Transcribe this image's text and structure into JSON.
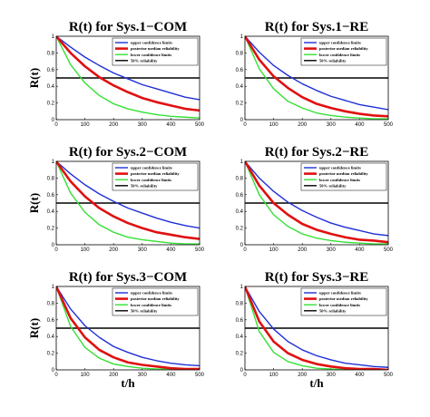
{
  "chart_data": [
    {
      "type": "line",
      "title": "R(t) for Sys.1−COM",
      "xlabel": "",
      "ylabel": "R(t)",
      "xlim": [
        0,
        500
      ],
      "ylim": [
        0,
        1
      ],
      "xticks": [
        "0",
        "100",
        "200",
        "300",
        "400",
        "500"
      ],
      "yticks": [
        "0",
        "0.2",
        "0.4",
        "0.6",
        "0.8",
        "1"
      ],
      "legend_position": "top-right",
      "x": [
        0,
        50,
        100,
        150,
        200,
        250,
        300,
        350,
        400,
        450,
        500
      ],
      "series": [
        {
          "name": "upper confidence limits",
          "color": "#1f2fd6",
          "values": [
            1.0,
            0.87,
            0.75,
            0.65,
            0.56,
            0.49,
            0.42,
            0.37,
            0.32,
            0.27,
            0.24
          ]
        },
        {
          "name": "posterior median reliability",
          "color": "#e01010",
          "values": [
            1.0,
            0.8,
            0.64,
            0.51,
            0.41,
            0.33,
            0.26,
            0.21,
            0.17,
            0.13,
            0.11
          ]
        },
        {
          "name": "lower confidence limits",
          "color": "#34e034",
          "values": [
            1.0,
            0.66,
            0.44,
            0.29,
            0.19,
            0.13,
            0.09,
            0.06,
            0.04,
            0.03,
            0.02
          ]
        },
        {
          "name": "50% reliability",
          "color": "#000000",
          "values": [
            0.5,
            0.5,
            0.5,
            0.5,
            0.5,
            0.5,
            0.5,
            0.5,
            0.5,
            0.5,
            0.5
          ]
        }
      ]
    },
    {
      "type": "line",
      "title": "R(t) for Sys.1−RE",
      "xlabel": "",
      "ylabel": "",
      "xlim": [
        0,
        500
      ],
      "ylim": [
        0,
        1
      ],
      "xticks": [
        "0",
        "100",
        "200",
        "300",
        "400",
        "500"
      ],
      "yticks": [
        "0",
        "0.2",
        "0.4",
        "0.6",
        "0.8",
        "1"
      ],
      "legend_position": "top-right",
      "x": [
        0,
        50,
        100,
        150,
        200,
        250,
        300,
        350,
        400,
        450,
        500
      ],
      "series": [
        {
          "name": "upper confidence limits",
          "color": "#1f2fd6",
          "values": [
            1.0,
            0.81,
            0.65,
            0.53,
            0.43,
            0.35,
            0.28,
            0.23,
            0.18,
            0.15,
            0.12
          ]
        },
        {
          "name": "posterior median reliability",
          "color": "#e01010",
          "values": [
            1.0,
            0.72,
            0.52,
            0.38,
            0.27,
            0.19,
            0.14,
            0.1,
            0.07,
            0.05,
            0.04
          ]
        },
        {
          "name": "lower confidence limits",
          "color": "#34e034",
          "values": [
            1.0,
            0.61,
            0.37,
            0.22,
            0.14,
            0.08,
            0.05,
            0.03,
            0.02,
            0.01,
            0.01
          ]
        },
        {
          "name": "50% reliability",
          "color": "#000000",
          "values": [
            0.5,
            0.5,
            0.5,
            0.5,
            0.5,
            0.5,
            0.5,
            0.5,
            0.5,
            0.5,
            0.5
          ]
        }
      ]
    },
    {
      "type": "line",
      "title": "R(t) for Sys.2−COM",
      "xlabel": "",
      "ylabel": "R(t)",
      "xlim": [
        0,
        500
      ],
      "ylim": [
        0,
        1
      ],
      "xticks": [
        "0",
        "100",
        "200",
        "300",
        "400",
        "500"
      ],
      "yticks": [
        "0",
        "0.2",
        "0.4",
        "0.6",
        "0.8",
        "1"
      ],
      "legend_position": "top-right",
      "x": [
        0,
        50,
        100,
        150,
        200,
        250,
        300,
        350,
        400,
        450,
        500
      ],
      "series": [
        {
          "name": "upper confidence limits",
          "color": "#1f2fd6",
          "values": [
            1.0,
            0.85,
            0.72,
            0.61,
            0.52,
            0.44,
            0.38,
            0.32,
            0.27,
            0.23,
            0.2
          ]
        },
        {
          "name": "posterior median reliability",
          "color": "#e01010",
          "values": [
            1.0,
            0.76,
            0.58,
            0.44,
            0.34,
            0.26,
            0.2,
            0.15,
            0.12,
            0.09,
            0.07
          ]
        },
        {
          "name": "lower confidence limits",
          "color": "#34e034",
          "values": [
            1.0,
            0.62,
            0.39,
            0.24,
            0.15,
            0.09,
            0.06,
            0.04,
            0.02,
            0.01,
            0.01
          ]
        },
        {
          "name": "50% reliability",
          "color": "#000000",
          "values": [
            0.5,
            0.5,
            0.5,
            0.5,
            0.5,
            0.5,
            0.5,
            0.5,
            0.5,
            0.5,
            0.5
          ]
        }
      ]
    },
    {
      "type": "line",
      "title": "R(t) for Sys.2−RE",
      "xlabel": "",
      "ylabel": "",
      "xlim": [
        0,
        500
      ],
      "ylim": [
        0,
        1
      ],
      "xticks": [
        "0",
        "100",
        "200",
        "300",
        "400",
        "500"
      ],
      "yticks": [
        "0",
        "0.2",
        "0.4",
        "0.6",
        "0.8",
        "1"
      ],
      "legend_position": "top-right",
      "x": [
        0,
        50,
        100,
        150,
        200,
        250,
        300,
        350,
        400,
        450,
        500
      ],
      "series": [
        {
          "name": "upper confidence limits",
          "color": "#1f2fd6",
          "values": [
            1.0,
            0.8,
            0.64,
            0.51,
            0.41,
            0.33,
            0.26,
            0.21,
            0.17,
            0.13,
            0.11
          ]
        },
        {
          "name": "posterior median reliability",
          "color": "#e01010",
          "values": [
            1.0,
            0.71,
            0.5,
            0.36,
            0.25,
            0.18,
            0.13,
            0.09,
            0.06,
            0.05,
            0.03
          ]
        },
        {
          "name": "lower confidence limits",
          "color": "#34e034",
          "values": [
            1.0,
            0.6,
            0.36,
            0.22,
            0.13,
            0.08,
            0.05,
            0.03,
            0.02,
            0.01,
            0.01
          ]
        },
        {
          "name": "50% reliability",
          "color": "#000000",
          "values": [
            0.5,
            0.5,
            0.5,
            0.5,
            0.5,
            0.5,
            0.5,
            0.5,
            0.5,
            0.5,
            0.5
          ]
        }
      ]
    },
    {
      "type": "line",
      "title": "R(t) for Sys.3−COM",
      "xlabel": "t/h",
      "ylabel": "R(t)",
      "xlim": [
        0,
        500
      ],
      "ylim": [
        0,
        1
      ],
      "xticks": [
        "0",
        "100",
        "200",
        "300",
        "400",
        "500"
      ],
      "yticks": [
        "0",
        "0.2",
        "0.4",
        "0.6",
        "0.8",
        "1"
      ],
      "legend_position": "top-right",
      "x": [
        0,
        50,
        100,
        150,
        200,
        250,
        300,
        350,
        400,
        450,
        500
      ],
      "series": [
        {
          "name": "upper confidence limits",
          "color": "#1f2fd6",
          "values": [
            1.0,
            0.73,
            0.53,
            0.39,
            0.28,
            0.21,
            0.15,
            0.11,
            0.08,
            0.06,
            0.05
          ]
        },
        {
          "name": "posterior median reliability",
          "color": "#e01010",
          "values": [
            1.0,
            0.62,
            0.39,
            0.24,
            0.15,
            0.09,
            0.06,
            0.04,
            0.02,
            0.01,
            0.01
          ]
        },
        {
          "name": "lower confidence limits",
          "color": "#34e034",
          "values": [
            1.0,
            0.52,
            0.27,
            0.14,
            0.07,
            0.04,
            0.02,
            0.01,
            0.01,
            0.0,
            0.0
          ]
        },
        {
          "name": "50% reliability",
          "color": "#000000",
          "values": [
            0.5,
            0.5,
            0.5,
            0.5,
            0.5,
            0.5,
            0.5,
            0.5,
            0.5,
            0.5,
            0.5
          ]
        }
      ]
    },
    {
      "type": "line",
      "title": "R(t) for Sys.3−RE",
      "xlabel": "t/h",
      "ylabel": "",
      "xlim": [
        0,
        500
      ],
      "ylim": [
        0,
        1
      ],
      "xticks": [
        "0",
        "100",
        "200",
        "300",
        "400",
        "500"
      ],
      "yticks": [
        "0",
        "0.2",
        "0.4",
        "0.6",
        "0.8",
        "1"
      ],
      "legend_position": "top-right",
      "x": [
        0,
        50,
        100,
        150,
        200,
        250,
        300,
        350,
        400,
        450,
        500
      ],
      "series": [
        {
          "name": "upper confidence limits",
          "color": "#1f2fd6",
          "values": [
            1.0,
            0.7,
            0.49,
            0.34,
            0.24,
            0.17,
            0.12,
            0.08,
            0.06,
            0.04,
            0.03
          ]
        },
        {
          "name": "posterior median reliability",
          "color": "#e01010",
          "values": [
            1.0,
            0.58,
            0.34,
            0.2,
            0.12,
            0.07,
            0.04,
            0.02,
            0.01,
            0.01,
            0.0
          ]
        },
        {
          "name": "lower confidence limits",
          "color": "#34e034",
          "values": [
            1.0,
            0.46,
            0.21,
            0.1,
            0.05,
            0.02,
            0.01,
            0.0,
            0.0,
            0.0,
            0.0
          ]
        },
        {
          "name": "50% reliability",
          "color": "#000000",
          "values": [
            0.5,
            0.5,
            0.5,
            0.5,
            0.5,
            0.5,
            0.5,
            0.5,
            0.5,
            0.5,
            0.5
          ]
        }
      ]
    }
  ],
  "legend_labels": [
    "upper confidence limits",
    "posterior median reliability",
    "lower confidence limits",
    "50% reliability"
  ]
}
